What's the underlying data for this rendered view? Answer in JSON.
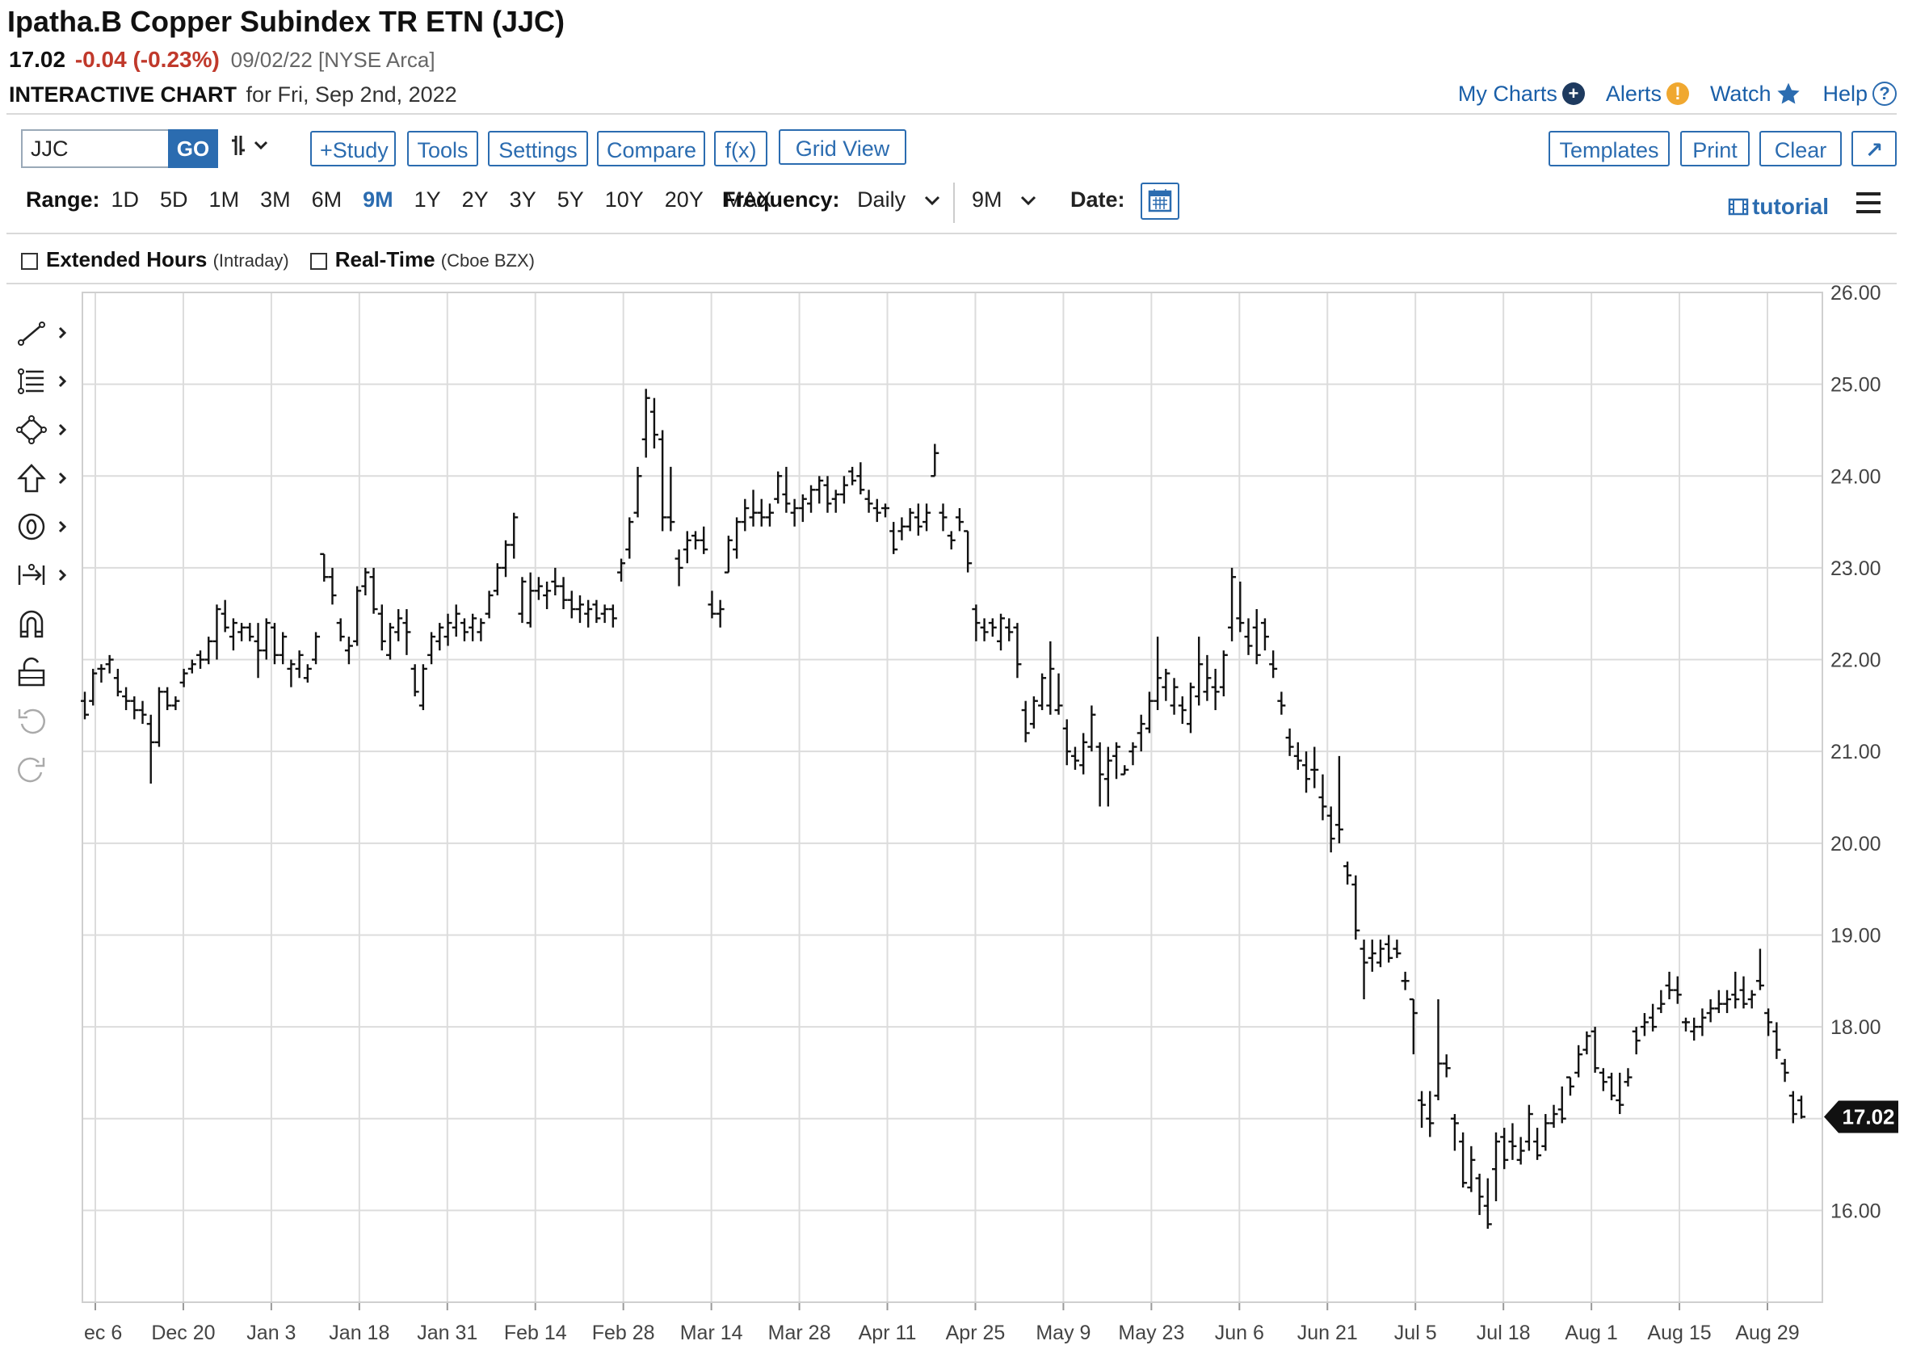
{
  "header": {
    "title": "Ipatha.B Copper Subindex TR ETN (JJC)",
    "last": "17.02",
    "change": "-0.04 (-0.23%)",
    "date_exchange": "09/02/22 [NYSE Arca]",
    "chart_label": "INTERACTIVE CHART",
    "chart_date": "for Fri, Sep 2nd, 2022"
  },
  "toplinks": {
    "my_charts": "My Charts",
    "alerts": "Alerts",
    "watch": "Watch",
    "help": "Help"
  },
  "toolbar": {
    "symbol": "JJC",
    "go": "GO",
    "bar_type": "╂̶↓",
    "study": "+Study",
    "tools": "Tools",
    "settings": "Settings",
    "compare": "Compare",
    "fx": "f(x)",
    "grid_view": "Grid View",
    "templates": "Templates",
    "print": "Print",
    "clear": "Clear",
    "expand": "↗"
  },
  "rangebar": {
    "label": "Range:",
    "options": [
      "1D",
      "5D",
      "1M",
      "3M",
      "6M",
      "9M",
      "1Y",
      "2Y",
      "3Y",
      "5Y",
      "10Y",
      "20Y",
      "MAX"
    ],
    "selected": "9M",
    "frequency_label": "Frequency:",
    "frequency": "Daily",
    "period": "9M",
    "date_label": "Date:",
    "tutorial": "tutorial"
  },
  "options": {
    "extended": "Extended Hours",
    "extended_note": "(Intraday)",
    "realtime": "Real-Time",
    "realtime_note": "(Cboe BZX)"
  },
  "chart_data": {
    "type": "ohlc",
    "ylim": [
      15.0,
      26.0
    ],
    "y_ticks": [
      "16.00",
      "17.00",
      "18.00",
      "19.00",
      "20.00",
      "21.00",
      "22.00",
      "23.00",
      "24.00",
      "25.00",
      "26.00"
    ],
    "x_labels": [
      "ec 6",
      "Dec 20",
      "Jan 3",
      "Jan 18",
      "Jan 31",
      "Feb 14",
      "Feb 28",
      "Mar 14",
      "Mar 28",
      "Apr 11",
      "Apr 25",
      "May 9",
      "May 23",
      "Jun 6",
      "Jun 21",
      "Jul 5",
      "Jul 18",
      "Aug 1",
      "Aug 15",
      "Aug 29"
    ],
    "last_value": "17.02",
    "colors": {
      "bars": "#111111",
      "grid": "#dcdcdc",
      "badge": "#111111"
    },
    "bars": [
      [
        21.55,
        21.65,
        21.35,
        21.4
      ],
      [
        21.55,
        21.9,
        21.5,
        21.85
      ],
      [
        21.9,
        21.95,
        21.75,
        21.9
      ],
      [
        21.95,
        22.05,
        21.85,
        22.0
      ],
      [
        21.8,
        21.9,
        21.6,
        21.65
      ],
      [
        21.6,
        21.7,
        21.45,
        21.55
      ],
      [
        21.55,
        21.6,
        21.35,
        21.45
      ],
      [
        21.45,
        21.55,
        21.3,
        21.4
      ],
      [
        21.3,
        21.4,
        20.65,
        21.1
      ],
      [
        21.1,
        21.7,
        21.05,
        21.65
      ],
      [
        21.65,
        21.7,
        21.45,
        21.5
      ],
      [
        21.5,
        21.6,
        21.45,
        21.55
      ],
      [
        21.75,
        21.9,
        21.7,
        21.85
      ],
      [
        21.9,
        22.0,
        21.85,
        21.95
      ],
      [
        22.05,
        22.1,
        21.9,
        22.0
      ],
      [
        22.0,
        22.25,
        21.95,
        22.2
      ],
      [
        22.2,
        22.6,
        22.0,
        22.55
      ],
      [
        22.5,
        22.65,
        22.3,
        22.35
      ],
      [
        22.25,
        22.45,
        22.1,
        22.4
      ],
      [
        22.3,
        22.4,
        22.2,
        22.35
      ],
      [
        22.35,
        22.4,
        22.2,
        22.25
      ],
      [
        22.2,
        22.4,
        21.8,
        22.1
      ],
      [
        22.1,
        22.45,
        22.0,
        22.4
      ],
      [
        22.35,
        22.4,
        21.95,
        22.05
      ],
      [
        22.05,
        22.3,
        21.95,
        22.25
      ],
      [
        21.9,
        22.0,
        21.7,
        21.95
      ],
      [
        21.9,
        22.1,
        21.8,
        22.05
      ],
      [
        21.8,
        21.95,
        21.75,
        21.9
      ],
      [
        22.0,
        22.3,
        21.95,
        22.25
      ],
      [
        23.15,
        23.15,
        22.85,
        22.9
      ],
      [
        22.9,
        23.0,
        22.6,
        22.7
      ],
      [
        22.4,
        22.45,
        22.2,
        22.25
      ],
      [
        22.1,
        22.25,
        21.95,
        22.15
      ],
      [
        22.2,
        22.8,
        22.15,
        22.75
      ],
      [
        22.8,
        23.0,
        22.7,
        22.95
      ],
      [
        22.9,
        23.0,
        22.5,
        22.55
      ],
      [
        22.5,
        22.6,
        22.1,
        22.2
      ],
      [
        22.05,
        22.4,
        22.0,
        22.35
      ],
      [
        22.3,
        22.55,
        22.2,
        22.45
      ],
      [
        22.4,
        22.55,
        22.05,
        22.3
      ],
      [
        21.9,
        21.95,
        21.6,
        21.65
      ],
      [
        21.5,
        21.95,
        21.45,
        21.9
      ],
      [
        22.05,
        22.3,
        21.95,
        22.25
      ],
      [
        22.2,
        22.4,
        22.1,
        22.35
      ],
      [
        22.25,
        22.5,
        22.15,
        22.4
      ],
      [
        22.35,
        22.6,
        22.25,
        22.5
      ],
      [
        22.4,
        22.45,
        22.2,
        22.3
      ],
      [
        22.35,
        22.5,
        22.2,
        22.45
      ],
      [
        22.3,
        22.45,
        22.2,
        22.4
      ],
      [
        22.5,
        22.75,
        22.45,
        22.7
      ],
      [
        22.75,
        23.05,
        22.7,
        23.0
      ],
      [
        23.0,
        23.3,
        22.9,
        23.25
      ],
      [
        23.25,
        23.6,
        23.1,
        23.55
      ],
      [
        22.5,
        22.9,
        22.4,
        22.85
      ],
      [
        22.4,
        22.95,
        22.35,
        22.75
      ],
      [
        22.75,
        22.9,
        22.65,
        22.8
      ],
      [
        22.7,
        22.85,
        22.55,
        22.75
      ],
      [
        22.85,
        23.0,
        22.7,
        22.8
      ],
      [
        22.8,
        22.9,
        22.55,
        22.65
      ],
      [
        22.65,
        22.75,
        22.45,
        22.55
      ],
      [
        22.55,
        22.7,
        22.4,
        22.6
      ],
      [
        22.5,
        22.65,
        22.35,
        22.55
      ],
      [
        22.6,
        22.65,
        22.4,
        22.45
      ],
      [
        22.5,
        22.6,
        22.4,
        22.55
      ],
      [
        22.55,
        22.6,
        22.35,
        22.45
      ],
      [
        22.95,
        23.1,
        22.85,
        23.05
      ],
      [
        23.2,
        23.55,
        23.1,
        23.5
      ],
      [
        23.6,
        24.1,
        23.55,
        24.0
      ],
      [
        24.4,
        24.95,
        24.2,
        24.85
      ],
      [
        24.7,
        24.85,
        24.3,
        24.45
      ],
      [
        24.4,
        24.5,
        23.4,
        23.55
      ],
      [
        23.55,
        24.1,
        23.4,
        23.5
      ],
      [
        23.1,
        23.2,
        22.8,
        23.0
      ],
      [
        23.2,
        23.4,
        23.05,
        23.3
      ],
      [
        23.35,
        23.4,
        23.2,
        23.3
      ],
      [
        23.3,
        23.45,
        23.15,
        23.2
      ],
      [
        22.6,
        22.75,
        22.45,
        22.5
      ],
      [
        22.5,
        22.65,
        22.35,
        22.55
      ],
      [
        22.95,
        23.35,
        22.95,
        23.3
      ],
      [
        23.2,
        23.55,
        23.1,
        23.5
      ],
      [
        23.5,
        23.75,
        23.4,
        23.65
      ],
      [
        23.55,
        23.85,
        23.45,
        23.6
      ],
      [
        23.6,
        23.75,
        23.45,
        23.55
      ],
      [
        23.55,
        23.7,
        23.45,
        23.6
      ],
      [
        23.75,
        24.05,
        23.7,
        24.0
      ],
      [
        23.8,
        24.1,
        23.6,
        23.7
      ],
      [
        23.6,
        23.75,
        23.45,
        23.65
      ],
      [
        23.65,
        23.8,
        23.5,
        23.75
      ],
      [
        23.7,
        23.9,
        23.6,
        23.85
      ],
      [
        23.85,
        24.0,
        23.7,
        23.95
      ],
      [
        23.9,
        24.0,
        23.6,
        23.7
      ],
      [
        23.75,
        23.85,
        23.6,
        23.8
      ],
      [
        23.8,
        24.0,
        23.7,
        23.9
      ],
      [
        24.05,
        24.1,
        23.9,
        23.95
      ],
      [
        24.0,
        24.15,
        23.8,
        23.85
      ],
      [
        23.75,
        23.85,
        23.6,
        23.7
      ],
      [
        23.65,
        23.75,
        23.5,
        23.6
      ],
      [
        23.65,
        23.7,
        23.55,
        23.65
      ],
      [
        23.4,
        23.5,
        23.15,
        23.2
      ],
      [
        23.4,
        23.55,
        23.3,
        23.45
      ],
      [
        23.45,
        23.65,
        23.4,
        23.6
      ],
      [
        23.55,
        23.7,
        23.35,
        23.45
      ],
      [
        23.5,
        23.7,
        23.4,
        23.6
      ],
      [
        24.0,
        24.35,
        24.0,
        24.25
      ],
      [
        23.6,
        23.7,
        23.4,
        23.55
      ],
      [
        23.35,
        23.4,
        23.2,
        23.3
      ],
      [
        23.55,
        23.65,
        23.4,
        23.5
      ],
      [
        23.4,
        23.4,
        22.95,
        23.05
      ],
      [
        22.55,
        22.6,
        22.2,
        22.4
      ],
      [
        22.35,
        22.45,
        22.2,
        22.3
      ],
      [
        22.4,
        22.45,
        22.25,
        22.35
      ],
      [
        22.2,
        22.5,
        22.1,
        22.45
      ],
      [
        22.35,
        22.45,
        22.2,
        22.3
      ],
      [
        22.35,
        22.4,
        21.8,
        21.95
      ],
      [
        21.45,
        21.55,
        21.1,
        21.2
      ],
      [
        21.3,
        21.6,
        21.25,
        21.55
      ],
      [
        21.5,
        21.85,
        21.45,
        21.8
      ],
      [
        21.5,
        22.2,
        21.4,
        21.9
      ],
      [
        21.45,
        21.85,
        21.4,
        21.5
      ],
      [
        21.25,
        21.35,
        20.85,
        21.0
      ],
      [
        20.95,
        21.05,
        20.8,
        20.9
      ],
      [
        20.85,
        21.2,
        20.75,
        21.1
      ],
      [
        21.05,
        21.5,
        21.0,
        21.4
      ],
      [
        21.05,
        21.1,
        20.4,
        20.75
      ],
      [
        20.7,
        21.05,
        20.4,
        20.9
      ],
      [
        20.95,
        21.1,
        20.7,
        21.05
      ],
      [
        20.75,
        20.85,
        20.75,
        20.8
      ],
      [
        21.0,
        21.1,
        20.85,
        21.05
      ],
      [
        21.2,
        21.4,
        21.0,
        21.3
      ],
      [
        21.25,
        21.65,
        21.2,
        21.55
      ],
      [
        21.55,
        22.25,
        21.45,
        21.8
      ],
      [
        21.7,
        21.9,
        21.55,
        21.85
      ],
      [
        21.5,
        21.8,
        21.4,
        21.7
      ],
      [
        21.5,
        21.6,
        21.3,
        21.45
      ],
      [
        21.3,
        21.75,
        21.2,
        21.7
      ],
      [
        21.6,
        22.25,
        21.5,
        21.95
      ],
      [
        21.65,
        22.05,
        21.55,
        21.8
      ],
      [
        21.7,
        21.9,
        21.45,
        21.65
      ],
      [
        21.7,
        22.1,
        21.6,
        22.05
      ],
      [
        22.35,
        23.0,
        22.2,
        22.9
      ],
      [
        22.45,
        22.85,
        22.3,
        22.4
      ],
      [
        22.25,
        22.45,
        22.05,
        22.15
      ],
      [
        22.35,
        22.55,
        21.95,
        22.05
      ],
      [
        22.4,
        22.45,
        22.1,
        22.25
      ],
      [
        21.95,
        22.1,
        21.8,
        21.9
      ],
      [
        21.55,
        21.65,
        21.4,
        21.5
      ],
      [
        21.15,
        21.25,
        20.95,
        21.05
      ],
      [
        20.95,
        21.1,
        20.8,
        20.9
      ],
      [
        20.85,
        21.0,
        20.55,
        20.7
      ],
      [
        20.8,
        21.05,
        20.6,
        20.8
      ],
      [
        20.5,
        20.75,
        20.25,
        20.4
      ],
      [
        20.3,
        20.4,
        19.9,
        20.05
      ],
      [
        20.2,
        20.95,
        20.0,
        20.15
      ],
      [
        19.75,
        19.8,
        19.55,
        19.65
      ],
      [
        19.55,
        19.65,
        18.95,
        19.05
      ],
      [
        18.85,
        18.95,
        18.3,
        18.7
      ],
      [
        18.75,
        18.95,
        18.6,
        18.8
      ],
      [
        18.7,
        18.95,
        18.65,
        18.85
      ],
      [
        18.9,
        19.0,
        18.7,
        18.75
      ],
      [
        18.85,
        18.95,
        18.75,
        18.8
      ],
      [
        18.5,
        18.6,
        18.4,
        18.5
      ],
      [
        18.3,
        18.3,
        17.7,
        18.15
      ],
      [
        17.2,
        17.3,
        16.9,
        17.15
      ],
      [
        17.0,
        17.3,
        16.8,
        16.95
      ],
      [
        17.25,
        18.3,
        17.2,
        17.6
      ],
      [
        17.6,
        17.7,
        17.45,
        17.55
      ],
      [
        17.0,
        17.05,
        16.65,
        16.95
      ],
      [
        16.75,
        16.85,
        16.25,
        16.3
      ],
      [
        16.25,
        16.7,
        16.2,
        16.55
      ],
      [
        16.35,
        16.4,
        15.95,
        16.15
      ],
      [
        16.05,
        16.35,
        15.8,
        15.85
      ],
      [
        16.45,
        16.85,
        16.1,
        16.75
      ],
      [
        16.8,
        16.9,
        16.45,
        16.55
      ],
      [
        16.75,
        16.95,
        16.55,
        16.7
      ],
      [
        16.55,
        16.8,
        16.5,
        16.65
      ],
      [
        16.75,
        17.15,
        16.65,
        17.05
      ],
      [
        16.75,
        16.9,
        16.55,
        16.6
      ],
      [
        16.7,
        17.05,
        16.65,
        16.95
      ],
      [
        16.95,
        17.15,
        16.9,
        17.05
      ],
      [
        17.1,
        17.35,
        16.95,
        17.0
      ],
      [
        17.45,
        17.45,
        17.25,
        17.35
      ],
      [
        17.5,
        17.8,
        17.45,
        17.7
      ],
      [
        17.75,
        17.95,
        17.7,
        17.9
      ],
      [
        17.95,
        18.0,
        17.5,
        17.55
      ],
      [
        17.5,
        17.55,
        17.3,
        17.4
      ],
      [
        17.45,
        17.5,
        17.2,
        17.25
      ],
      [
        17.2,
        17.5,
        17.05,
        17.15
      ],
      [
        17.4,
        17.55,
        17.35,
        17.45
      ],
      [
        17.95,
        18.0,
        17.7,
        17.85
      ],
      [
        18.0,
        18.15,
        17.9,
        18.05
      ],
      [
        18.1,
        18.25,
        17.95,
        18.0
      ],
      [
        18.2,
        18.4,
        18.15,
        18.25
      ],
      [
        18.45,
        18.6,
        18.3,
        18.4
      ],
      [
        18.4,
        18.55,
        18.25,
        18.35
      ],
      [
        18.05,
        18.1,
        17.95,
        18.05
      ],
      [
        17.95,
        18.1,
        17.85,
        18.0
      ],
      [
        18.0,
        18.2,
        17.9,
        18.1
      ],
      [
        18.15,
        18.3,
        18.05,
        18.2
      ],
      [
        18.2,
        18.4,
        18.15,
        18.25
      ],
      [
        18.25,
        18.4,
        18.15,
        18.3
      ],
      [
        18.35,
        18.6,
        18.2,
        18.3
      ],
      [
        18.4,
        18.55,
        18.2,
        18.25
      ],
      [
        18.3,
        18.4,
        18.2,
        18.35
      ],
      [
        18.5,
        18.85,
        18.4,
        18.45
      ],
      [
        18.15,
        18.2,
        17.9,
        18.05
      ],
      [
        17.95,
        18.05,
        17.65,
        17.75
      ],
      [
        17.6,
        17.65,
        17.4,
        17.5
      ],
      [
        17.25,
        17.3,
        16.95,
        17.05
      ],
      [
        17.2,
        17.25,
        17.0,
        17.02
      ]
    ]
  }
}
